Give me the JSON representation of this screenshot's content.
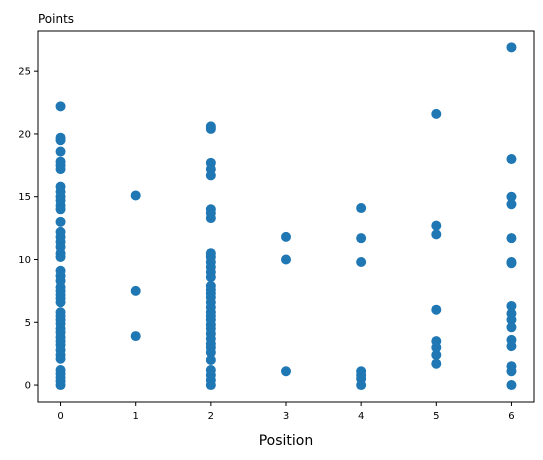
{
  "chart_data": {
    "type": "scatter",
    "xlabel": "Position",
    "ylabel": "Points",
    "xlim": [
      -0.3,
      6.3
    ],
    "ylim": [
      -1.35,
      28.2
    ],
    "xticks": [
      0,
      1,
      2,
      3,
      4,
      5,
      6
    ],
    "yticks": [
      0,
      5,
      10,
      15,
      20,
      25
    ],
    "grid": false,
    "marker_color": "#1f77b4",
    "points": [
      [
        0,
        22.2
      ],
      [
        0,
        19.7
      ],
      [
        0,
        19.5
      ],
      [
        0,
        18.6
      ],
      [
        0,
        17.8
      ],
      [
        0,
        17.5
      ],
      [
        0,
        17.2
      ],
      [
        0,
        15.8
      ],
      [
        0,
        15.4
      ],
      [
        0,
        15.0
      ],
      [
        0,
        14.7
      ],
      [
        0,
        14.3
      ],
      [
        0,
        14.0
      ],
      [
        0,
        13.0
      ],
      [
        0,
        12.2
      ],
      [
        0,
        11.8
      ],
      [
        0,
        11.4
      ],
      [
        0,
        11.0
      ],
      [
        0,
        10.5
      ],
      [
        0,
        10.2
      ],
      [
        0,
        9.1
      ],
      [
        0,
        8.7
      ],
      [
        0,
        8.3
      ],
      [
        0,
        7.8
      ],
      [
        0,
        7.5
      ],
      [
        0,
        7.2
      ],
      [
        0,
        6.9
      ],
      [
        0,
        6.6
      ],
      [
        0,
        5.8
      ],
      [
        0,
        5.5
      ],
      [
        0,
        5.2
      ],
      [
        0,
        4.9
      ],
      [
        0,
        4.5
      ],
      [
        0,
        4.2
      ],
      [
        0,
        3.8
      ],
      [
        0,
        3.5
      ],
      [
        0,
        3.2
      ],
      [
        0,
        2.8
      ],
      [
        0,
        2.4
      ],
      [
        0,
        2.1
      ],
      [
        0,
        1.2
      ],
      [
        0,
        0.9
      ],
      [
        0,
        0.6
      ],
      [
        0,
        0.3
      ],
      [
        0,
        0.0
      ],
      [
        1,
        15.1
      ],
      [
        1,
        7.5
      ],
      [
        1,
        3.9
      ],
      [
        2,
        20.6
      ],
      [
        2,
        20.4
      ],
      [
        2,
        17.7
      ],
      [
        2,
        17.2
      ],
      [
        2,
        16.7
      ],
      [
        2,
        14.0
      ],
      [
        2,
        13.7
      ],
      [
        2,
        13.3
      ],
      [
        2,
        10.5
      ],
      [
        2,
        10.2
      ],
      [
        2,
        9.8
      ],
      [
        2,
        9.4
      ],
      [
        2,
        9.0
      ],
      [
        2,
        8.6
      ],
      [
        2,
        7.9
      ],
      [
        2,
        7.6
      ],
      [
        2,
        7.3
      ],
      [
        2,
        7.0
      ],
      [
        2,
        6.6
      ],
      [
        2,
        6.2
      ],
      [
        2,
        5.8
      ],
      [
        2,
        5.5
      ],
      [
        2,
        5.2
      ],
      [
        2,
        4.8
      ],
      [
        2,
        4.5
      ],
      [
        2,
        4.1
      ],
      [
        2,
        3.7
      ],
      [
        2,
        3.3
      ],
      [
        2,
        3.0
      ],
      [
        2,
        2.6
      ],
      [
        2,
        2.0
      ],
      [
        2,
        1.2
      ],
      [
        2,
        0.8
      ],
      [
        2,
        0.4
      ],
      [
        2,
        0.0
      ],
      [
        3,
        11.8
      ],
      [
        3,
        10.0
      ],
      [
        3,
        1.1
      ],
      [
        4,
        14.1
      ],
      [
        4,
        11.7
      ],
      [
        4,
        9.8
      ],
      [
        4,
        1.1
      ],
      [
        4,
        0.8
      ],
      [
        4,
        0.5
      ],
      [
        4,
        0.0
      ],
      [
        5,
        21.6
      ],
      [
        5,
        12.7
      ],
      [
        5,
        12.0
      ],
      [
        5,
        6.0
      ],
      [
        5,
        3.5
      ],
      [
        5,
        3.0
      ],
      [
        5,
        2.4
      ],
      [
        5,
        1.7
      ],
      [
        6,
        26.9
      ],
      [
        6,
        18.0
      ],
      [
        6,
        15.0
      ],
      [
        6,
        14.4
      ],
      [
        6,
        11.7
      ],
      [
        6,
        9.8
      ],
      [
        6,
        9.7
      ],
      [
        6,
        6.3
      ],
      [
        6,
        5.7
      ],
      [
        6,
        5.2
      ],
      [
        6,
        4.6
      ],
      [
        6,
        3.6
      ],
      [
        6,
        3.1
      ],
      [
        6,
        1.5
      ],
      [
        6,
        1.1
      ],
      [
        6,
        0.0
      ]
    ]
  }
}
